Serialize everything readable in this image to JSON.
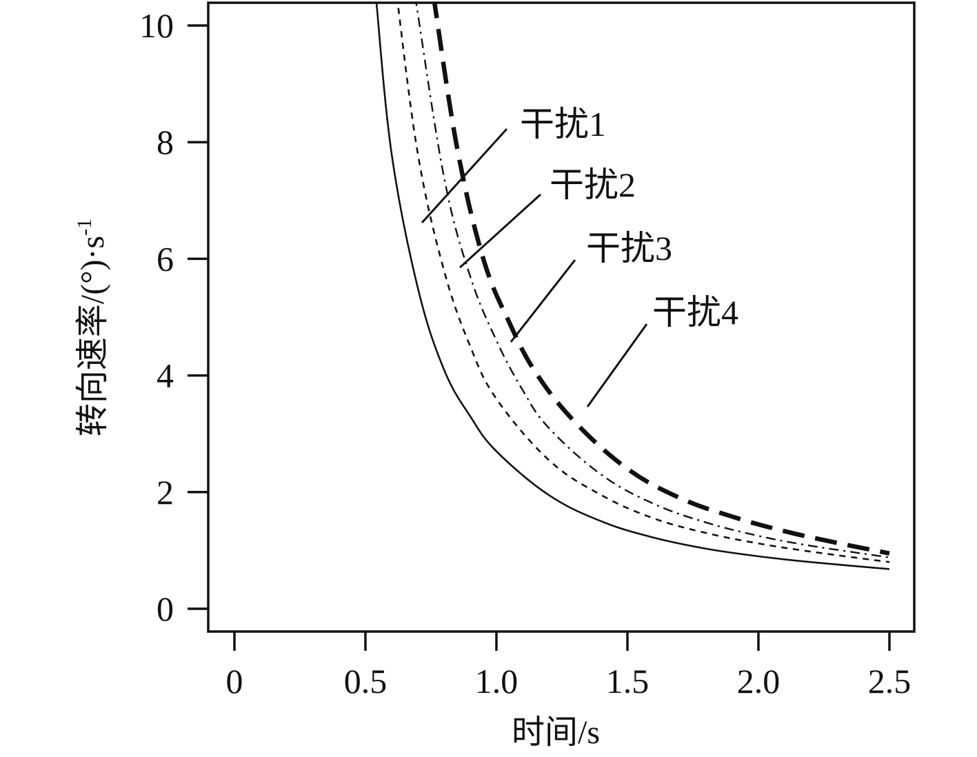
{
  "chart_data": {
    "type": "line",
    "xlabel": "时间/s",
    "ylabel": "转向速率/(°)·s",
    "ylabel_sup": "-1",
    "xlim": [
      0,
      2.5
    ],
    "ylim": [
      0,
      10.4
    ],
    "x_ticks": [
      "0",
      "0.5",
      "1.0",
      "1.5",
      "2.0",
      "2.5"
    ],
    "x_tick_values": [
      0,
      0.5,
      1.0,
      1.5,
      2.0,
      2.5
    ],
    "y_ticks": [
      "0",
      "2",
      "4",
      "6",
      "8",
      "10"
    ],
    "y_tick_values": [
      0,
      2,
      4,
      6,
      8,
      10
    ],
    "grid": false,
    "legend": "none",
    "series": [
      {
        "name": "干扰1",
        "style": "solid",
        "x": [
          0.54,
          0.6,
          0.7,
          0.8,
          0.9,
          1.0,
          1.2,
          1.4,
          1.6,
          1.8,
          2.0,
          2.2,
          2.5
        ],
        "y": [
          10.5,
          7.8,
          5.5,
          4.1,
          3.3,
          2.7,
          1.95,
          1.5,
          1.22,
          1.03,
          0.9,
          0.8,
          0.68
        ]
      },
      {
        "name": "干扰2",
        "style": "dashed-short",
        "x": [
          0.62,
          0.7,
          0.8,
          0.9,
          1.0,
          1.2,
          1.4,
          1.6,
          1.8,
          2.0,
          2.2,
          2.5
        ],
        "y": [
          10.5,
          7.8,
          5.8,
          4.5,
          3.6,
          2.55,
          1.95,
          1.55,
          1.3,
          1.12,
          0.98,
          0.8
        ]
      },
      {
        "name": "干扰3",
        "style": "dash-dot",
        "x": [
          0.69,
          0.8,
          0.9,
          1.0,
          1.1,
          1.2,
          1.4,
          1.6,
          1.8,
          2.0,
          2.2,
          2.5
        ],
        "y": [
          10.5,
          7.4,
          5.7,
          4.6,
          3.75,
          3.1,
          2.3,
          1.8,
          1.48,
          1.25,
          1.08,
          0.88
        ]
      },
      {
        "name": "干扰4",
        "style": "dashed-long-bold",
        "x": [
          0.76,
          0.85,
          0.95,
          1.05,
          1.15,
          1.3,
          1.5,
          1.7,
          1.9,
          2.1,
          2.3,
          2.5
        ],
        "y": [
          10.5,
          7.9,
          6.0,
          4.9,
          4.05,
          3.2,
          2.4,
          1.9,
          1.58,
          1.33,
          1.13,
          0.95
        ]
      }
    ],
    "annotations": [
      {
        "text": "干扰1",
        "series": "干扰1"
      },
      {
        "text": "干扰2",
        "series": "干扰2"
      },
      {
        "text": "干扰3",
        "series": "干扰3"
      },
      {
        "text": "干扰4",
        "series": "干扰4"
      }
    ]
  }
}
